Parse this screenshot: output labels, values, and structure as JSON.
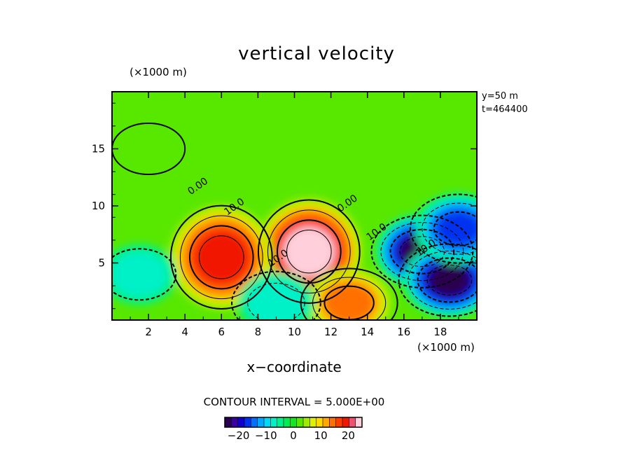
{
  "chart_data": {
    "type": "heatmap",
    "title": "vertical velocity",
    "xlabel": "x−coordinate",
    "x_unit": "(×1000 m)",
    "y_unit": "(×1000 m)",
    "info": [
      "y=50  m",
      "t=464400"
    ],
    "xlim": [
      0,
      20
    ],
    "ylim": [
      0,
      20
    ],
    "x_ticks": [
      2,
      4,
      6,
      8,
      10,
      12,
      14,
      16,
      18
    ],
    "y_ticks": [
      5,
      10,
      15
    ],
    "contour_interval_text": "CONTOUR INTERVAL = 5.000E+00",
    "contour_labels": [
      {
        "text": "0.00",
        "x": 4.8,
        "y": 11.5
      },
      {
        "text": "10.0",
        "x": 6.8,
        "y": 9.7
      },
      {
        "text": "0.00",
        "x": 13.0,
        "y": 10.0
      },
      {
        "text": "10.0",
        "x": 14.6,
        "y": 7.5
      },
      {
        "text": "10.0",
        "x": 9.2,
        "y": 5.2
      },
      {
        "text": "10.0",
        "x": 17.3,
        "y": 6.1
      }
    ],
    "colorbar": {
      "min": -25,
      "max": 25,
      "ticks": [
        -20,
        -10,
        0,
        10,
        20
      ],
      "tick_labels": [
        "−20",
        "−10",
        "0",
        "10",
        "20"
      ],
      "colors": [
        "#2a0050",
        "#3a00a0",
        "#1000d0",
        "#0030f0",
        "#0070ff",
        "#00a8ff",
        "#00d8f8",
        "#00f0c8",
        "#00f08c",
        "#00ec50",
        "#10e820",
        "#58e800",
        "#a0ec00",
        "#e0f000",
        "#ffd800",
        "#ffa800",
        "#ff7000",
        "#ff3c00",
        "#f01800",
        "#f05070",
        "#ffd0dc"
      ]
    },
    "features": [
      {
        "x": 10.8,
        "y": 6.0,
        "value": 26
      },
      {
        "x": 6.0,
        "y": 5.5,
        "value": 22
      },
      {
        "x": 13.0,
        "y": 1.5,
        "value": 16
      },
      {
        "x": 17.0,
        "y": 6.0,
        "value": -27
      },
      {
        "x": 18.5,
        "y": 3.5,
        "value": -25
      },
      {
        "x": 19.0,
        "y": 8.0,
        "value": -18
      },
      {
        "x": 9.0,
        "y": 1.5,
        "value": -10
      },
      {
        "x": 1.5,
        "y": 4.0,
        "value": -9
      },
      {
        "x": 2.0,
        "y": 15.0,
        "value": 3
      }
    ]
  }
}
